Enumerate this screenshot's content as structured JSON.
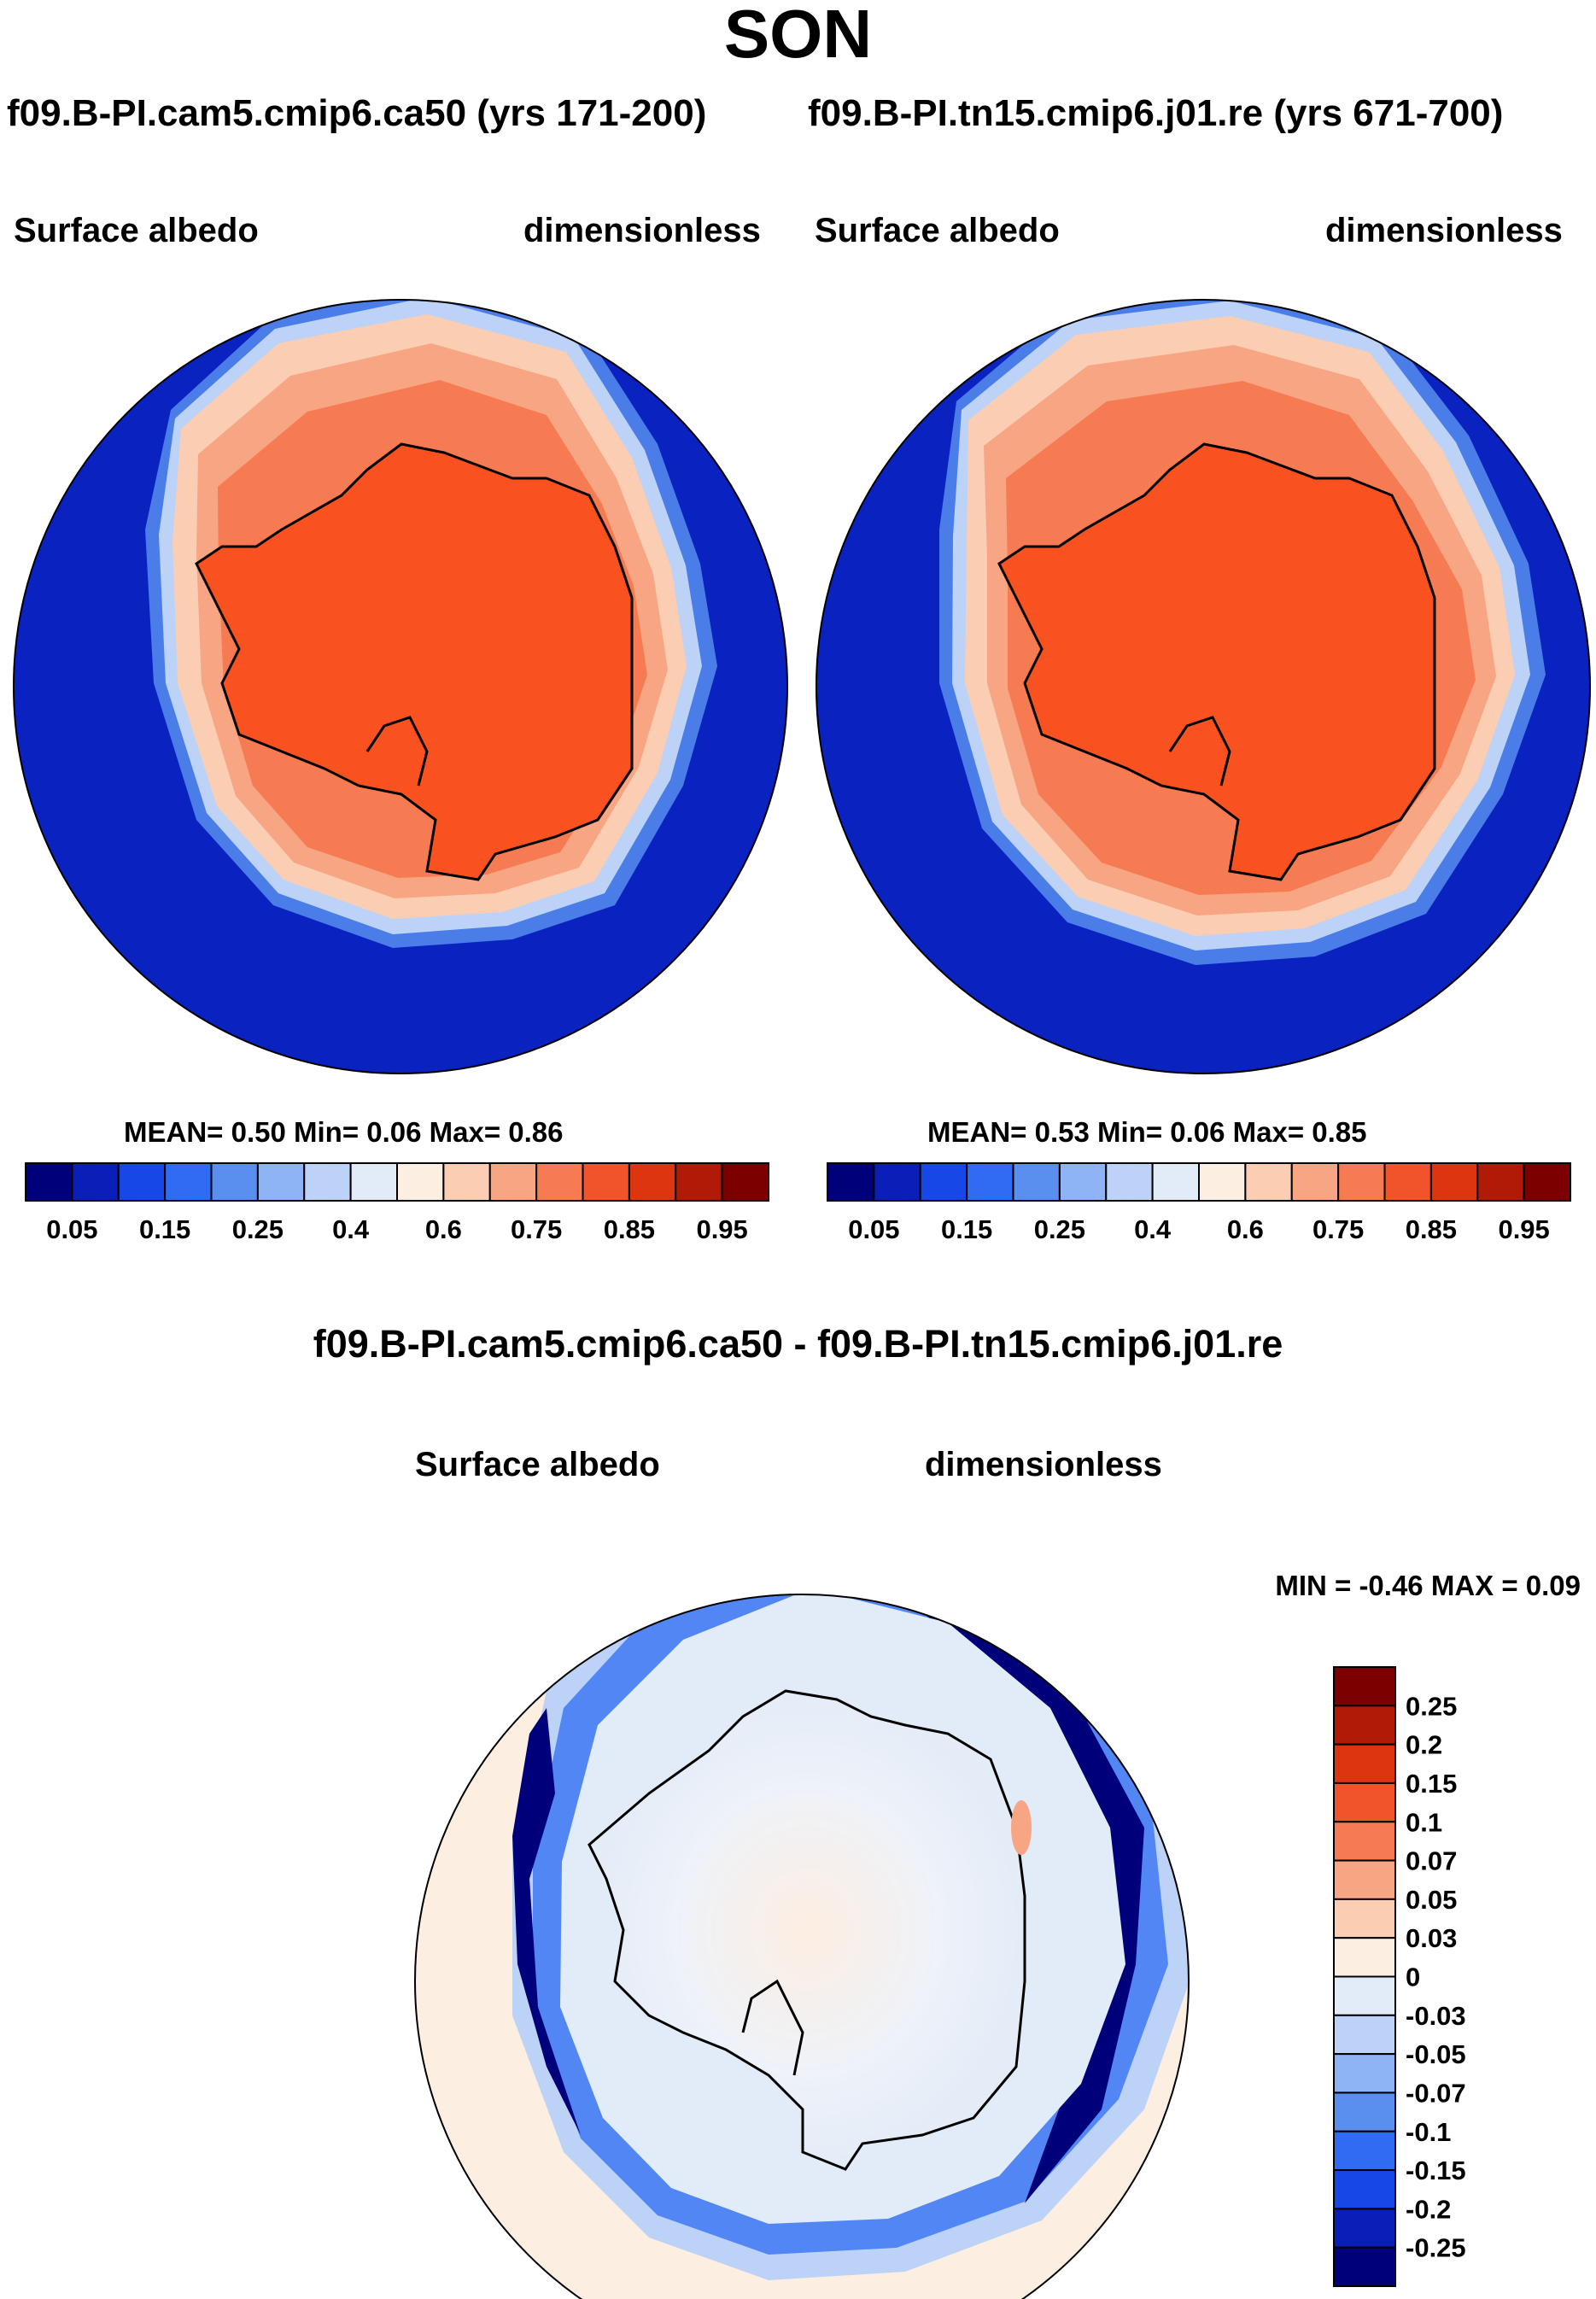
{
  "title": "SON",
  "panels": [
    {
      "case_title": "f09.B-PI.cam5.cmip6.ca50 (yrs 171-200)",
      "variable": "Surface albedo",
      "units": "dimensionless",
      "stats_text": "MEAN=   0.50  Min=    0.06  Max=    0.86",
      "colorbar_labels": [
        "0.05",
        "0.15",
        "0.25",
        "0.4",
        "0.6",
        "0.75",
        "0.85",
        "0.95"
      ]
    },
    {
      "case_title": "f09.B-PI.tn15.cmip6.j01.re (yrs 671-700)",
      "variable": "Surface albedo",
      "units": "dimensionless",
      "stats_text": "MEAN=   0.53  Min=    0.06  Max=    0.85",
      "colorbar_labels": [
        "0.05",
        "0.15",
        "0.25",
        "0.4",
        "0.6",
        "0.75",
        "0.85",
        "0.95"
      ]
    }
  ],
  "difference": {
    "title": "f09.B-PI.cam5.cmip6.ca50 - f09.B-PI.tn15.cmip6.j01.re",
    "variable": "Surface albedo",
    "units": "dimensionless",
    "minmax_text": "MIN =  -0.46 MAX =    0.09",
    "colorbar_labels": [
      "0.25",
      "0.2",
      "0.15",
      "0.1",
      "0.07",
      "0.05",
      "0.03",
      "0",
      "-0.03",
      "-0.05",
      "-0.07",
      "-0.1",
      "-0.15",
      "-0.2",
      "-0.25"
    ]
  },
  "palettes": {
    "absolute": [
      "#00007a",
      "#0a1fb8",
      "#1747e6",
      "#2f6cf3",
      "#5a8ff0",
      "#8eb4f5",
      "#bcd2f7",
      "#e2ecf9",
      "#fdeee2",
      "#fbcdb3",
      "#f7a583",
      "#f67b52",
      "#f1542a",
      "#dd3510",
      "#b01a06",
      "#7c0000"
    ],
    "difference": [
      "#7c0000",
      "#b01a06",
      "#dd3510",
      "#f1542a",
      "#f67b52",
      "#f7a583",
      "#fbcdb3",
      "#fdeee2",
      "#e2ecf9",
      "#bcd2f7",
      "#8eb4f5",
      "#5a8ff0",
      "#2f6cf3",
      "#1747e6",
      "#0a1fb8",
      "#00007a"
    ]
  }
}
